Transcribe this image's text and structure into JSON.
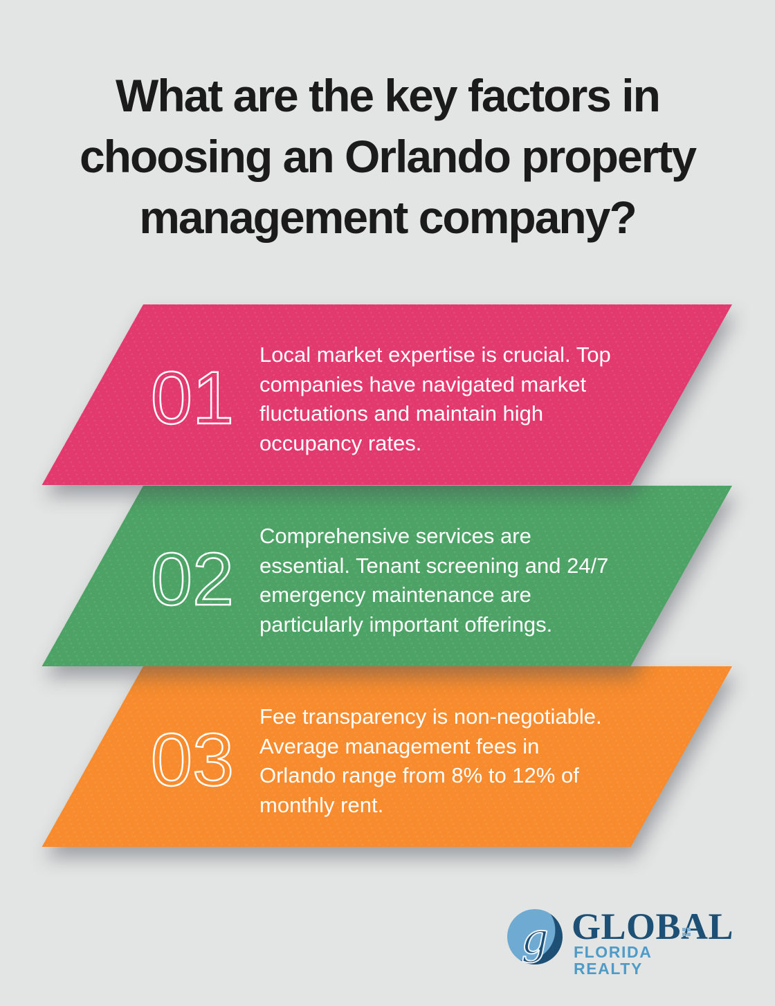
{
  "page": {
    "background": "#E3E5E4"
  },
  "title": {
    "color": "#1B1B1B",
    "lines": [
      "What are the key factors in",
      "choosing an Orlando property",
      "management company?"
    ]
  },
  "cards": [
    {
      "number": "01",
      "color": "#E23A6E",
      "lines": [
        "Local market expertise is crucial. Top",
        "companies have navigated market",
        "fluctuations and maintain high",
        "occupancy rates."
      ]
    },
    {
      "number": "02",
      "color": "#4DA365",
      "lines": [
        "Comprehensive services are",
        "essential. Tenant screening and 24/7",
        "emergency maintenance are",
        "particularly important offerings."
      ]
    },
    {
      "number": "03",
      "color": "#F78B2D",
      "lines": [
        "Fee transparency is non-negotiable.",
        "Average management fees in",
        "Orlando range from 8% to 12% of",
        "monthly rent."
      ]
    }
  ],
  "logo": {
    "monogram": "g",
    "name": "GLOBAL",
    "subtitle": "FLORIDA REALTY",
    "colors": {
      "dark_blue": "#1E4F74",
      "light_blue": "#4E9BC8",
      "circle_light": "#6FAAD3"
    }
  }
}
